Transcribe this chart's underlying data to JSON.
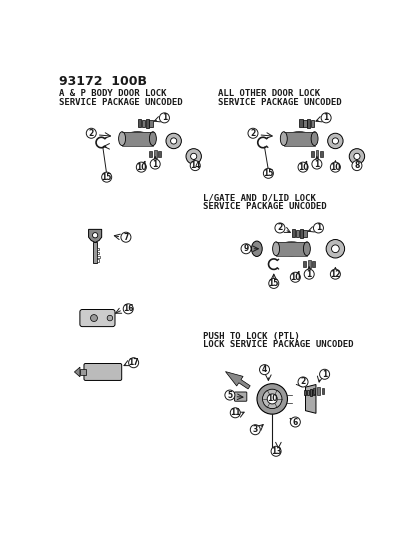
{
  "bg_color": "#ffffff",
  "fg_color": "#1a1a1a",
  "fig_width": 4.14,
  "fig_height": 5.33,
  "dpi": 100,
  "title": "93172  100B",
  "s1_title_l1": "A & P BODY DOOR LOCK",
  "s1_title_l2": "SERVICE PACKAGE UNCODED",
  "s2_title_l1": "ALL OTHER DOOR LOCK",
  "s2_title_l2": "SERVICE PACKAGE UNCODED",
  "s3_title_l1": "L/GATE AND D/LID LOCK",
  "s3_title_l2": "SERVICE PACKAGE UNCODED",
  "s4_title_l1": "PUSH TO LOCK (PTL)",
  "s4_title_l2": "LOCK SERVICE PACKAGE UNCODED"
}
